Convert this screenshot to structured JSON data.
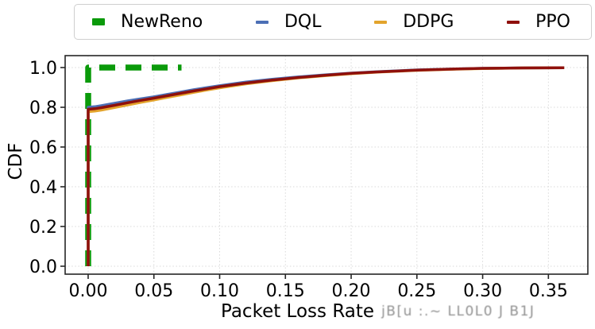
{
  "figure": {
    "background": "#ffffff",
    "artifact_text": "jB[u :.~ LL0L0 J B1J"
  },
  "legend": {
    "items": [
      {
        "label": "NewReno",
        "color": "#0a9a0a",
        "dashed": true,
        "linewidth": 7.5
      },
      {
        "label": "DQL",
        "color": "#4c6fb5",
        "dashed": false,
        "linewidth": 3.5
      },
      {
        "label": "DDPG",
        "color": "#e3a42c",
        "dashed": false,
        "linewidth": 3.5
      },
      {
        "label": "PPO",
        "color": "#8f100c",
        "dashed": false,
        "linewidth": 3.5
      }
    ]
  },
  "chart_data": {
    "type": "line",
    "title": "",
    "xlabel": "Packet Loss Rate",
    "ylabel": "CDF",
    "xlim": [
      -0.0175,
      0.38
    ],
    "ylim": [
      -0.04,
      1.06
    ],
    "x_ticks": [
      0.0,
      0.05,
      0.1,
      0.15,
      0.2,
      0.25,
      0.3,
      0.35
    ],
    "x_tick_labels": [
      "0.00",
      "0.05",
      "0.10",
      "0.15",
      "0.20",
      "0.25",
      "0.30",
      "0.35"
    ],
    "y_ticks": [
      0.0,
      0.2,
      0.4,
      0.6,
      0.8,
      1.0
    ],
    "y_tick_labels": [
      "0.0",
      "0.2",
      "0.4",
      "0.6",
      "0.8",
      "1.0"
    ],
    "grid": true,
    "grid_style": "dotted",
    "grid_color": "#d9d9d9",
    "spine_color": "#262626",
    "legend_position": "upper center, outside axes",
    "series": [
      {
        "name": "NewReno",
        "color": "#0a9a0a",
        "linewidth": 7.5,
        "dash": [
          20,
          13
        ],
        "points": [
          [
            0,
            0
          ],
          [
            0,
            1.0
          ],
          [
            0.071,
            1.0
          ]
        ]
      },
      {
        "name": "DQL",
        "color": "#4c6fb5",
        "linewidth": 3.5,
        "dash": null,
        "points": [
          [
            0,
            0
          ],
          [
            0,
            0.8
          ],
          [
            0.005,
            0.803
          ],
          [
            0.01,
            0.808
          ],
          [
            0.02,
            0.82
          ],
          [
            0.03,
            0.832
          ],
          [
            0.04,
            0.843
          ],
          [
            0.05,
            0.853
          ],
          [
            0.06,
            0.865
          ],
          [
            0.07,
            0.876
          ],
          [
            0.08,
            0.888
          ],
          [
            0.09,
            0.899
          ],
          [
            0.1,
            0.909
          ],
          [
            0.12,
            0.927
          ],
          [
            0.14,
            0.941
          ],
          [
            0.16,
            0.953
          ],
          [
            0.18,
            0.963
          ],
          [
            0.2,
            0.972
          ],
          [
            0.22,
            0.979
          ],
          [
            0.25,
            0.988
          ],
          [
            0.28,
            0.993
          ],
          [
            0.3,
            0.996
          ],
          [
            0.33,
            0.998
          ],
          [
            0.362,
            0.999
          ]
        ]
      },
      {
        "name": "DDPG",
        "color": "#e3a42c",
        "linewidth": 3.5,
        "dash": null,
        "points": [
          [
            0,
            0
          ],
          [
            0,
            0.778
          ],
          [
            0.005,
            0.781
          ],
          [
            0.01,
            0.786
          ],
          [
            0.02,
            0.799
          ],
          [
            0.03,
            0.812
          ],
          [
            0.04,
            0.825
          ],
          [
            0.05,
            0.837
          ],
          [
            0.06,
            0.85
          ],
          [
            0.07,
            0.862
          ],
          [
            0.08,
            0.875
          ],
          [
            0.09,
            0.887
          ],
          [
            0.1,
            0.898
          ],
          [
            0.12,
            0.918
          ],
          [
            0.14,
            0.934
          ],
          [
            0.16,
            0.948
          ],
          [
            0.18,
            0.959
          ],
          [
            0.2,
            0.969
          ],
          [
            0.22,
            0.977
          ],
          [
            0.25,
            0.986
          ],
          [
            0.28,
            0.992
          ],
          [
            0.3,
            0.995
          ],
          [
            0.33,
            0.998
          ],
          [
            0.362,
            0.999
          ]
        ]
      },
      {
        "name": "PPO",
        "color": "#8f100c",
        "linewidth": 3.5,
        "dash": null,
        "points": [
          [
            0,
            0
          ],
          [
            0,
            0.79
          ],
          [
            0.005,
            0.793
          ],
          [
            0.01,
            0.798
          ],
          [
            0.02,
            0.81
          ],
          [
            0.03,
            0.823
          ],
          [
            0.04,
            0.835
          ],
          [
            0.05,
            0.846
          ],
          [
            0.06,
            0.858
          ],
          [
            0.07,
            0.87
          ],
          [
            0.08,
            0.882
          ],
          [
            0.09,
            0.893
          ],
          [
            0.1,
            0.904
          ],
          [
            0.12,
            0.922
          ],
          [
            0.14,
            0.937
          ],
          [
            0.16,
            0.95
          ],
          [
            0.18,
            0.961
          ],
          [
            0.2,
            0.971
          ],
          [
            0.22,
            0.978
          ],
          [
            0.25,
            0.987
          ],
          [
            0.28,
            0.993
          ],
          [
            0.3,
            0.996
          ],
          [
            0.33,
            0.998
          ],
          [
            0.362,
            0.999
          ]
        ]
      }
    ]
  }
}
